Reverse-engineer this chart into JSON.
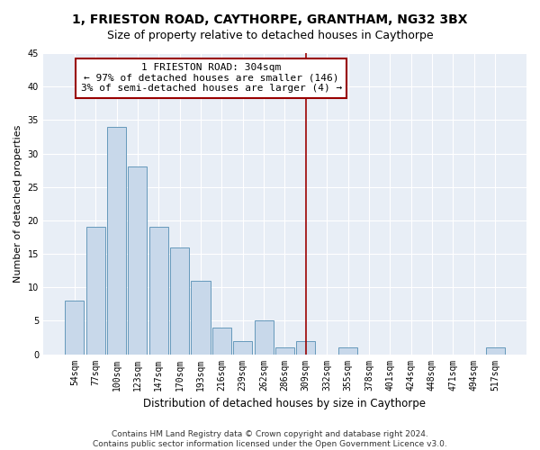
{
  "title": "1, FRIESTON ROAD, CAYTHORPE, GRANTHAM, NG32 3BX",
  "subtitle": "Size of property relative to detached houses in Caythorpe",
  "xlabel": "Distribution of detached houses by size in Caythorpe",
  "ylabel": "Number of detached properties",
  "categories": [
    "54sqm",
    "77sqm",
    "100sqm",
    "123sqm",
    "147sqm",
    "170sqm",
    "193sqm",
    "216sqm",
    "239sqm",
    "262sqm",
    "286sqm",
    "309sqm",
    "332sqm",
    "355sqm",
    "378sqm",
    "401sqm",
    "424sqm",
    "448sqm",
    "471sqm",
    "494sqm",
    "517sqm"
  ],
  "values": [
    8,
    19,
    34,
    28,
    19,
    16,
    11,
    4,
    2,
    5,
    1,
    2,
    0,
    1,
    0,
    0,
    0,
    0,
    0,
    0,
    1
  ],
  "bar_color": "#c8d8ea",
  "bar_edge_color": "#6699bb",
  "highlight_line_color": "#990000",
  "annotation_text_line1": "1 FRIESTON ROAD: 304sqm",
  "annotation_text_line2": "← 97% of detached houses are smaller (146)",
  "annotation_text_line3": "3% of semi-detached houses are larger (4) →",
  "annotation_box_color": "#ffffff",
  "annotation_box_edge_color": "#990000",
  "ylim": [
    0,
    45
  ],
  "yticks": [
    0,
    5,
    10,
    15,
    20,
    25,
    30,
    35,
    40,
    45
  ],
  "fig_bg_color": "#ffffff",
  "plot_bg_color": "#e8eef6",
  "grid_color": "#ffffff",
  "footer_text": "Contains HM Land Registry data © Crown copyright and database right 2024.\nContains public sector information licensed under the Open Government Licence v3.0.",
  "title_fontsize": 10,
  "subtitle_fontsize": 9,
  "xlabel_fontsize": 8.5,
  "ylabel_fontsize": 8,
  "tick_fontsize": 7,
  "annotation_fontsize": 8,
  "footer_fontsize": 6.5,
  "line_x_index": 11
}
